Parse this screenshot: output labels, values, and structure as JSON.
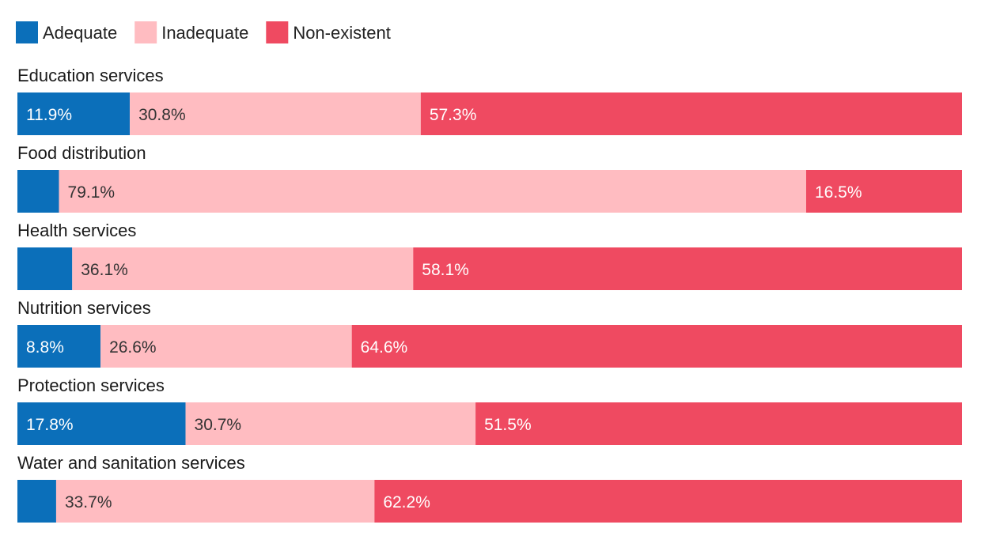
{
  "chart_data": {
    "type": "bar",
    "orientation": "horizontal",
    "stacked": true,
    "categories": [
      "Education services",
      "Food distribution",
      "Health services",
      "Nutrition services",
      "Protection services",
      "Water and sanitation services"
    ],
    "series": [
      {
        "name": "Adequate",
        "color": "#0b6fba",
        "label_color": "#ffffff",
        "values": [
          11.9,
          4.4,
          5.8,
          8.8,
          17.8,
          4.1
        ],
        "labels": [
          "11.9%",
          "",
          "",
          "8.8%",
          "17.8%",
          ""
        ]
      },
      {
        "name": "Inadequate",
        "color": "#ffbcc1",
        "label_color": "#333333",
        "values": [
          30.8,
          79.1,
          36.1,
          26.6,
          30.7,
          33.7
        ],
        "labels": [
          "30.8%",
          "79.1%",
          "36.1%",
          "26.6%",
          "30.7%",
          "33.7%"
        ]
      },
      {
        "name": "Non-existent",
        "color": "#ef4a61",
        "label_color": "#ffffff",
        "values": [
          57.3,
          16.5,
          58.1,
          64.6,
          51.5,
          62.2
        ],
        "labels": [
          "57.3%",
          "16.5%",
          "58.1%",
          "64.6%",
          "51.5%",
          "62.2%"
        ]
      }
    ],
    "xlim": [
      0,
      100
    ],
    "legend_position": "top-left",
    "grid": false
  }
}
